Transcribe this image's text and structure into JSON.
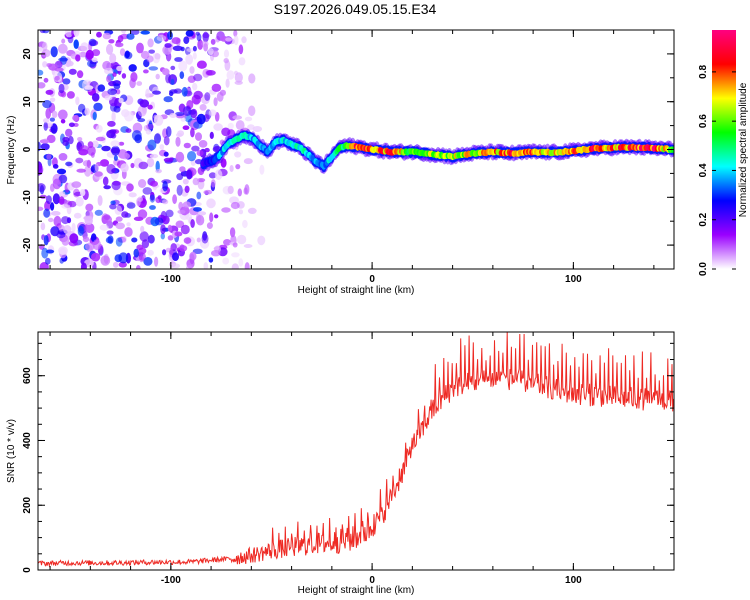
{
  "title": "S197.2026.049.05.15.E34",
  "chart_data": [
    {
      "type": "heatmap",
      "xlabel": "Height of straight line (km)",
      "ylabel": "Frequency (Hz)",
      "xlim": [
        -166,
        150
      ],
      "ylim": [
        -25,
        25
      ],
      "xticks": [
        -100,
        0,
        100
      ],
      "xtick_labels": [
        "-100",
        "0",
        "100"
      ],
      "yticks": [
        -20,
        -10,
        0,
        10,
        20
      ],
      "ytick_labels": [
        "-20",
        "-10",
        "0",
        "10",
        "20"
      ],
      "colorbar": {
        "label": "Normalized spectral amplitude",
        "range": [
          0,
          0.97
        ],
        "ticks": [
          0.0,
          0.2,
          0.4,
          0.6,
          0.8
        ],
        "tick_labels": [
          "0.0",
          "0.2",
          "0.4",
          "0.6",
          "0.8"
        ],
        "colors": [
          "#ffffff",
          "#9a00ff",
          "#0000ff",
          "#00ffff",
          "#00ff00",
          "#ffff00",
          "#ff0000",
          "#ff0080"
        ]
      },
      "noise_region_x": [
        -166,
        -60
      ],
      "ridge": {
        "x": [
          -84,
          -80,
          -76,
          -72,
          -68,
          -64,
          -60,
          -56,
          -52,
          -48,
          -44,
          -40,
          -36,
          -32,
          -28,
          -24,
          -20,
          -16,
          -12,
          -8,
          -4,
          0,
          10,
          20,
          30,
          40,
          50,
          60,
          70,
          80,
          90,
          100,
          110,
          120,
          130,
          140,
          150
        ],
        "freq": [
          -3,
          -2.5,
          -1.5,
          1,
          2,
          3,
          2.5,
          1,
          -0.5,
          1.5,
          2,
          1,
          0.5,
          -1,
          -2.5,
          -3.5,
          -1.5,
          0.5,
          0.8,
          0.6,
          0.3,
          0,
          -0.5,
          -0.5,
          -1,
          -1.5,
          -0.8,
          -0.5,
          -0.8,
          -0.5,
          -0.6,
          -0.3,
          0.2,
          0.4,
          0.5,
          0.3,
          0
        ],
        "amplitude": [
          0.25,
          0.3,
          0.4,
          0.45,
          0.45,
          0.5,
          0.45,
          0.4,
          0.4,
          0.45,
          0.45,
          0.5,
          0.5,
          0.45,
          0.4,
          0.35,
          0.5,
          0.55,
          0.7,
          0.9,
          0.9,
          0.8,
          0.9,
          0.6,
          0.7,
          0.7,
          0.75,
          0.8,
          0.9,
          0.85,
          0.8,
          0.85,
          0.9,
          0.85,
          0.9,
          0.95,
          0.6
        ]
      }
    },
    {
      "type": "line",
      "xlabel": "Height of straight line (km)",
      "ylabel": "SNR (10 * v/v)",
      "xlim": [
        -166,
        150
      ],
      "ylim": [
        0,
        735
      ],
      "xticks": [
        -100,
        0,
        100
      ],
      "xtick_labels": [
        "-100",
        "0",
        "100"
      ],
      "yticks": [
        0,
        200,
        400,
        600
      ],
      "ytick_labels": [
        "0",
        "200",
        "400",
        "600"
      ],
      "series": [
        {
          "name": "SNR",
          "color": "#ee2a24",
          "x": [
            -166,
            -150,
            -130,
            -110,
            -90,
            -80,
            -70,
            -60,
            -50,
            -40,
            -30,
            -20,
            -10,
            0,
            5,
            10,
            15,
            20,
            25,
            30,
            35,
            40,
            45,
            50,
            60,
            70,
            80,
            90,
            100,
            110,
            120,
            130,
            140,
            150
          ],
          "y": [
            20,
            22,
            22,
            24,
            25,
            30,
            35,
            45,
            60,
            70,
            80,
            85,
            95,
            130,
            170,
            230,
            300,
            380,
            440,
            490,
            530,
            560,
            575,
            580,
            590,
            590,
            575,
            560,
            545,
            540,
            535,
            530,
            525,
            520
          ]
        }
      ]
    }
  ]
}
